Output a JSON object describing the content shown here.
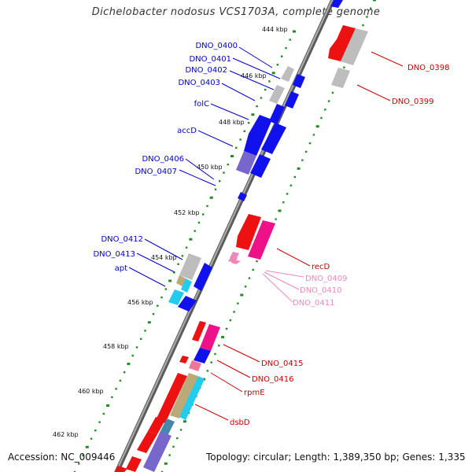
{
  "header": {
    "title": "Dichelobacter nodosus VCS1703A, complete genome"
  },
  "footer": {
    "accession": "Accession: NC_009446",
    "summary": "Topology: circular; Length: 1,389,350 bp; Genes: 1,335"
  },
  "colors": {
    "backbone": "#7a7a7a",
    "tick": "#228b22",
    "reverse_label": "#0000cc",
    "forward_label": "#cc0000",
    "pink_label": "#ee88bb",
    "gene_red": "#ee1111",
    "gene_blue": "#1111ee",
    "gene_grey": "#bdbdbd",
    "gene_purple": "#7766cc",
    "gene_magenta": "#ee1188",
    "gene_cyan": "#22ccee",
    "gene_olive": "#bbaa77",
    "gene_pink": "#ee7799",
    "gene_steel": "#4488aa"
  },
  "diagram": {
    "ticks": [
      "444 kbp",
      "446 kbp",
      "448 kbp",
      "450 kbp",
      "452 kbp",
      "454 kbp",
      "456 kbp",
      "458 kbp",
      "460 kbp",
      "462 kbp"
    ],
    "labels": {
      "dno_0400": "DNO_0400",
      "dno_0401": "DNO_0401",
      "dno_0402": "DNO_0402",
      "dno_0403": "DNO_0403",
      "folc": "folC",
      "accd": "accD",
      "dno_0406": "DNO_0406",
      "dno_0407": "DNO_0407",
      "dno_0412": "DNO_0412",
      "dno_0413": "DNO_0413",
      "apt": "apt",
      "dno_0398": "DNO_0398",
      "dno_0399": "DNO_0399",
      "recd": "recD",
      "dno_0409": "DNO_0409",
      "dno_0410": "DNO_0410",
      "dno_0411": "DNO_0411",
      "dno_0415": "DNO_0415",
      "dno_0416": "DNO_0416",
      "rpme": "rpmE",
      "dsbd": "dsbD"
    }
  }
}
